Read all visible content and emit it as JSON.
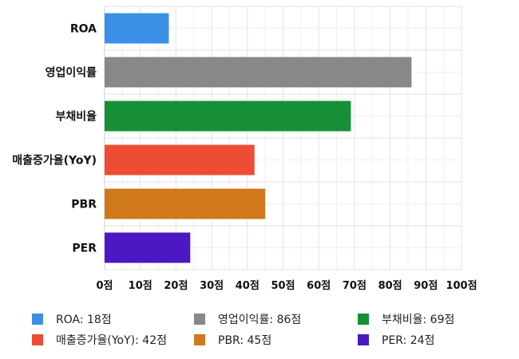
{
  "chart_data": {
    "type": "bar",
    "orientation": "horizontal",
    "categories": [
      "ROA",
      "영업이익률",
      "부채비율",
      "매출증가율(YoY)",
      "PBR",
      "PER"
    ],
    "values": [
      18,
      86,
      69,
      42,
      45,
      24
    ],
    "colors": [
      "#3b8fe6",
      "#888888",
      "#178f37",
      "#ef4c36",
      "#d0781c",
      "#4e17c4"
    ],
    "xlim": [
      0,
      100
    ],
    "x_ticks": [
      0,
      10,
      20,
      30,
      40,
      50,
      60,
      70,
      80,
      90,
      100
    ],
    "tick_suffix": "점",
    "grid": true,
    "legend_position": "bottom",
    "legend": [
      {
        "label": "ROA: 18점",
        "color": "#3b8fe6"
      },
      {
        "label": "영업이익률: 86점",
        "color": "#888888"
      },
      {
        "label": "부채비율: 69점",
        "color": "#178f37"
      },
      {
        "label": "매출증가율(YoY): 42점",
        "color": "#ef4c36"
      },
      {
        "label": "PBR: 45점",
        "color": "#d0781c"
      },
      {
        "label": "PER: 24점",
        "color": "#4e17c4"
      }
    ]
  }
}
